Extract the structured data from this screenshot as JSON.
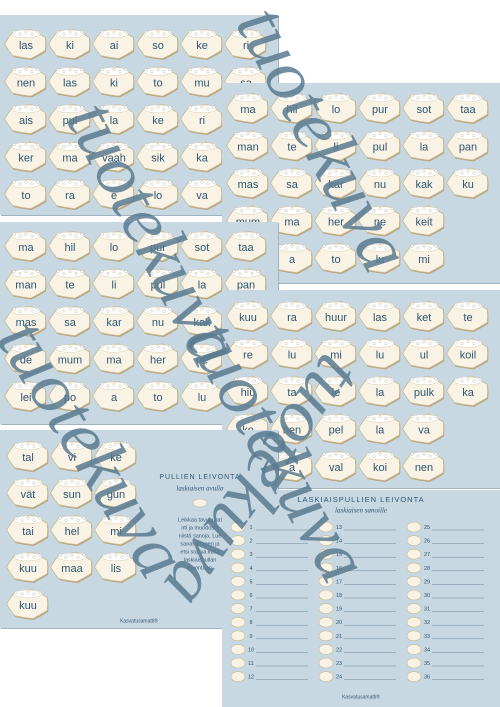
{
  "sheets": [
    {
      "words": [
        [
          "las",
          "ki",
          "ai",
          "so",
          "ke",
          "ri"
        ],
        [
          "nen",
          "las",
          "ki",
          "to",
          "mu",
          "sa"
        ],
        [
          "ais",
          "pul",
          "la",
          "ke",
          "ri"
        ],
        [
          "ker",
          "ma",
          "vaah",
          "sik",
          "ka"
        ],
        [
          "to",
          "ra",
          "e",
          "lo",
          "va"
        ]
      ]
    },
    {
      "words": [
        [
          "ma",
          "hil",
          "lo",
          "pur",
          "sot",
          "taa"
        ],
        [
          "man",
          "te",
          "li",
          "pul",
          "la",
          "pan"
        ],
        [
          "mas",
          "sa",
          "kar",
          "nu",
          "kak",
          "ku"
        ],
        [
          "mum",
          "ma",
          "her",
          "ne",
          "keit"
        ],
        [
          "po",
          "a",
          "to",
          "lu",
          "mi"
        ]
      ]
    },
    {
      "words": [
        [
          "ma",
          "hil",
          "lo",
          "pur",
          "sot",
          "taa"
        ],
        [
          "man",
          "te",
          "li",
          "pul",
          "la",
          "pan"
        ],
        [
          "mas",
          "sa",
          "kar",
          "nu",
          "kak"
        ],
        [
          "de",
          "mum",
          "ma",
          "her",
          "ne"
        ],
        [
          "lei",
          "po",
          "a",
          "to",
          "lu"
        ]
      ]
    },
    {
      "words": [
        [
          "kuu",
          "ra",
          "huur",
          "las",
          "ket",
          "te"
        ],
        [
          "re",
          "lu",
          "mi",
          "lu",
          "ul",
          "koil"
        ],
        [
          "hiu",
          "ta",
          "le",
          "la",
          "pulk",
          "ka"
        ],
        [
          "ko",
          "nen",
          "pel",
          "la",
          "va"
        ],
        [
          "ke",
          "a",
          "val",
          "koi",
          "nen"
        ]
      ]
    },
    {
      "words": [
        [
          "tal",
          "vi",
          "ke"
        ],
        [
          "vät",
          "sun",
          "gun"
        ],
        [
          "tai",
          "hel",
          "mi"
        ],
        [
          "kuu",
          "maa",
          "lis"
        ],
        [
          "kuu"
        ]
      ]
    }
  ],
  "info_sheet": {
    "title": "PULLIEN LEIVONTA",
    "subtitle": "laskiaisen avulla",
    "text": [
      "Leikkaa tavupullat",
      "irti ja muodosta",
      "niistä sanoja. Lue",
      "sanat ääneen ja",
      "etsi sopiva kuva",
      "laskiaispullan",
      "leivontaan."
    ],
    "footer": "Kasvatusamatti®"
  },
  "list_sheet": {
    "title": "LASKIAISPULLIEN LEIVONTA",
    "subtitle": "laskiaisen sanoille",
    "numbers": [
      1,
      2,
      3,
      4,
      5,
      6,
      7,
      8,
      9,
      10,
      11,
      12,
      13,
      14,
      15,
      16,
      17,
      18,
      19,
      20,
      21,
      22,
      23,
      24,
      25,
      26,
      27,
      28,
      29,
      30,
      31,
      32,
      33,
      34,
      35,
      36
    ],
    "footer": "Kasvatusamatti®"
  },
  "watermark": "tuotekuva"
}
